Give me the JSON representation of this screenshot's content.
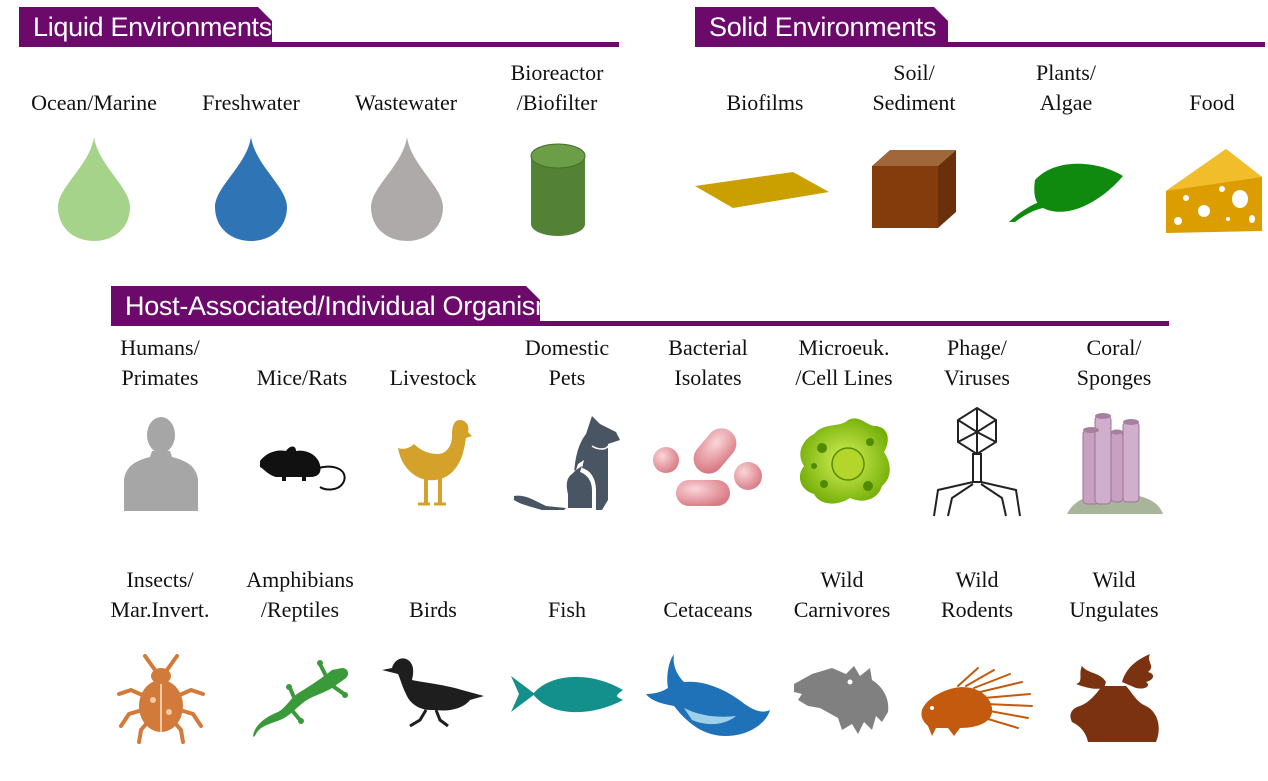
{
  "colors": {
    "section_bar": "#6b0a6b",
    "ocean": "#a6d38a",
    "freshwater": "#2f74b5",
    "wastewater": "#aeaaaa",
    "bioreactor": "#538135",
    "biofilm": "#c9a000",
    "soil": "#843c0c",
    "leaf": "#0f8a0f",
    "cheese": "#dc9d00"
  },
  "sections": {
    "liquid": {
      "title": "Liquid Environments",
      "items": [
        {
          "line1": "",
          "line2": "Ocean/Marine",
          "icon": "ocean-drop-icon"
        },
        {
          "line1": "",
          "line2": "Freshwater",
          "icon": "freshwater-drop-icon"
        },
        {
          "line1": "",
          "line2": "Wastewater",
          "icon": "wastewater-drop-icon"
        },
        {
          "line1": "Bioreactor",
          "line2": "/Biofilter",
          "icon": "cylinder-icon"
        }
      ]
    },
    "solid": {
      "title": "Solid Environments",
      "items": [
        {
          "line1": "",
          "line2": "Biofilms",
          "icon": "film-sheet-icon"
        },
        {
          "line1": "Soil/",
          "line2": "Sediment",
          "icon": "soil-cube-icon"
        },
        {
          "line1": "Plants/",
          "line2": "Algae",
          "icon": "leaf-icon"
        },
        {
          "line1": "",
          "line2": "Food",
          "icon": "cheese-icon"
        }
      ]
    },
    "host": {
      "title": "Host-Associated/Individual  Organisms",
      "row1": [
        {
          "line1": "Humans/",
          "line2": "Primates",
          "icon": "human-silhouette-icon"
        },
        {
          "line1": "",
          "line2": "Mice/Rats",
          "icon": "mouse-icon"
        },
        {
          "line1": "",
          "line2": "Livestock",
          "icon": "chicken-icon"
        },
        {
          "line1": "Domestic",
          "line2": "Pets",
          "icon": "dog-cat-icon"
        },
        {
          "line1": "Bacterial",
          "line2": "Isolates",
          "icon": "bacteria-icon"
        },
        {
          "line1": "Microeuk.",
          "line2": "/Cell Lines",
          "icon": "cell-icon"
        },
        {
          "line1": "Phage/",
          "line2": "Viruses",
          "icon": "phage-icon"
        },
        {
          "line1": "Coral/",
          "line2": "Sponges",
          "icon": "sponge-icon"
        }
      ],
      "row2": [
        {
          "line1": "Insects/",
          "line2": "Mar.Invert.",
          "icon": "beetle-icon"
        },
        {
          "line1": "Amphibians",
          "line2": "/Reptiles",
          "icon": "gecko-icon"
        },
        {
          "line1": "",
          "line2": "Birds",
          "icon": "bird-icon"
        },
        {
          "line1": "",
          "line2": "Fish",
          "icon": "fish-icon"
        },
        {
          "line1": "",
          "line2": "Cetaceans",
          "icon": "whale-icon"
        },
        {
          "line1": "Wild",
          "line2": "Carnivores",
          "icon": "wolf-icon"
        },
        {
          "line1": "Wild",
          "line2": "Rodents",
          "icon": "porcupine-icon"
        },
        {
          "line1": "Wild",
          "line2": "Ungulates",
          "icon": "moose-icon"
        }
      ]
    }
  }
}
